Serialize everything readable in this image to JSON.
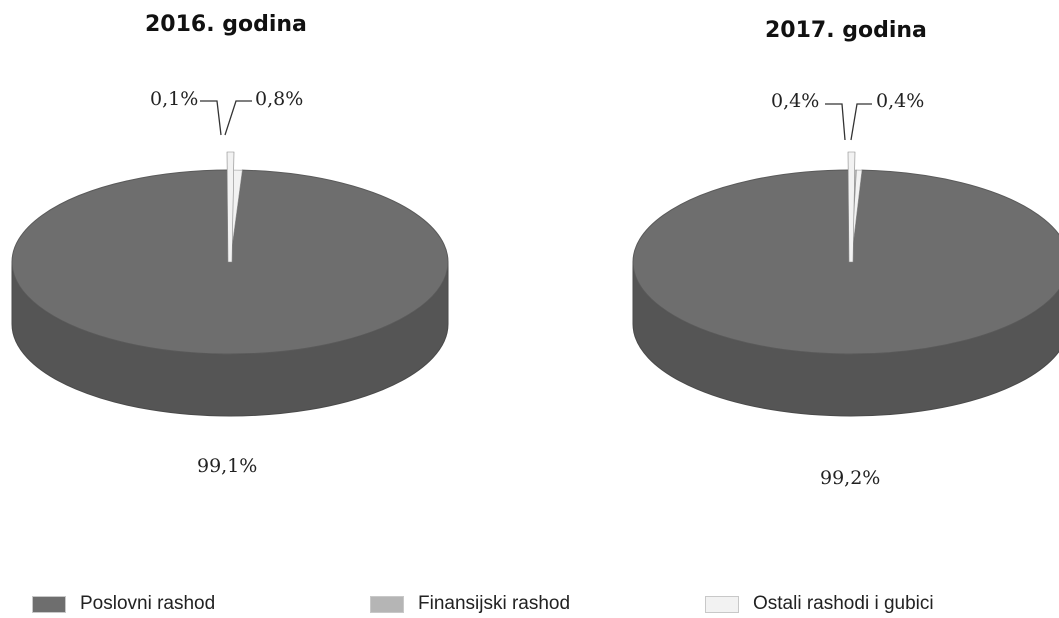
{
  "chart_data": [
    {
      "type": "pie",
      "title": "2016. godina",
      "categories": [
        "Poslovni rashod",
        "Finansijski rashod",
        "Ostali rashodi i gubici"
      ],
      "values": [
        99.1,
        0.1,
        0.8
      ],
      "data_labels": [
        "99,1%",
        "0,1%",
        "0,8%"
      ]
    },
    {
      "type": "pie",
      "title": "2017. godina",
      "categories": [
        "Poslovni rashod",
        "Finansijski rashod",
        "Ostali rashodi i gubici"
      ],
      "values": [
        99.2,
        0.4,
        0.4
      ],
      "data_labels": [
        "99,2%",
        "0,4%",
        "0,4%"
      ]
    }
  ],
  "legend": {
    "items": [
      {
        "label": "Poslovni rashod",
        "color": "#6e6e6e"
      },
      {
        "label": "Finansijski rashod",
        "color": "#b5b5b5"
      },
      {
        "label": "Ostali rashodi i gubici",
        "color": "#f2f2f2"
      }
    ],
    "placement": "bottom"
  },
  "style": {
    "pie_3d": true,
    "side_color": "#555555"
  }
}
